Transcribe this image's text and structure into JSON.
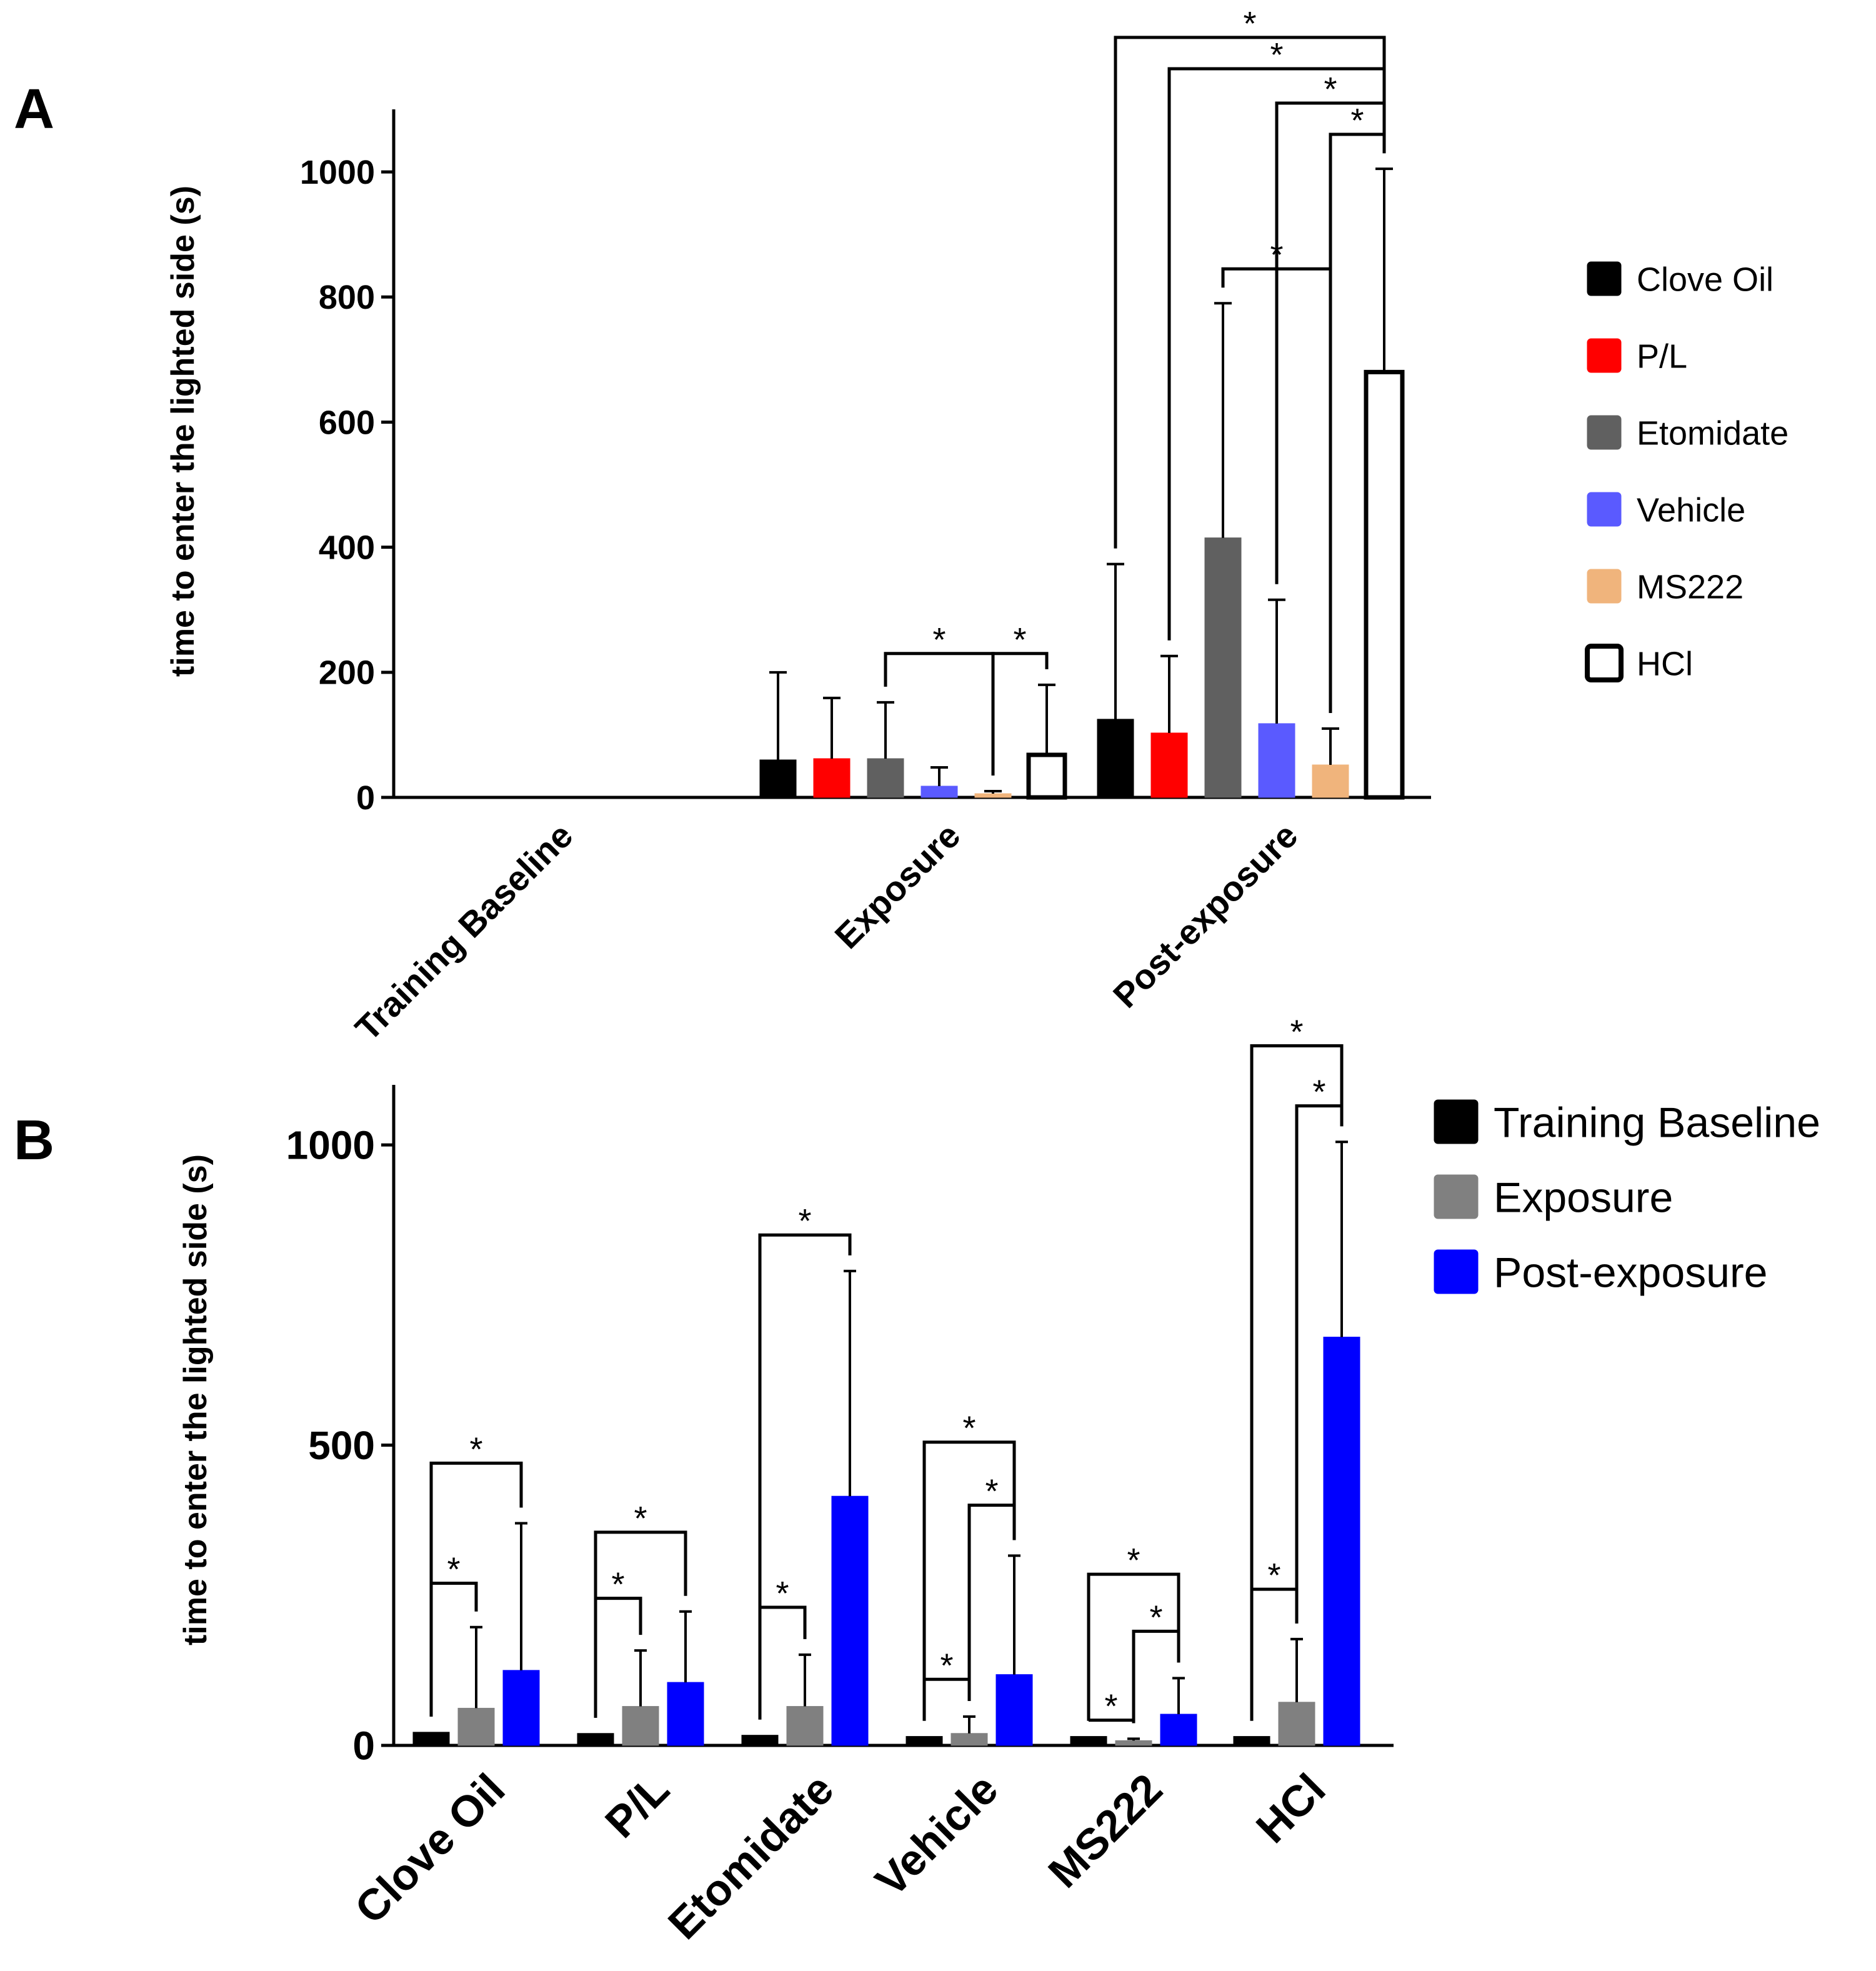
{
  "chart_data": [
    {
      "panel": "A",
      "type": "bar",
      "ylabel": "time to enter the lighted side (s)",
      "ylim": [
        0,
        1100
      ],
      "yticks": [
        0,
        200,
        400,
        600,
        800,
        1000
      ],
      "categories": [
        "Training Baseline",
        "Exposure",
        "Post-exposure"
      ],
      "series": [
        {
          "name": "Clove Oil",
          "color": "#000000",
          "outline": false,
          "values": [
            0,
            60,
            125
          ],
          "errors": [
            0,
            140,
            248
          ]
        },
        {
          "name": "P/L",
          "color": "#ff0000",
          "outline": false,
          "values": [
            0,
            62,
            103
          ],
          "errors": [
            0,
            97,
            123
          ]
        },
        {
          "name": "Etomidate",
          "color": "#606060",
          "outline": false,
          "values": [
            0,
            62,
            415
          ],
          "errors": [
            0,
            90,
            375
          ]
        },
        {
          "name": "Vehicle",
          "color": "#5a5aff",
          "outline": false,
          "values": [
            0,
            18,
            118
          ],
          "errors": [
            0,
            30,
            198
          ]
        },
        {
          "name": "MS222",
          "color": "#f0b47c",
          "outline": false,
          "values": [
            0,
            6,
            52
          ],
          "errors": [
            0,
            4,
            58
          ]
        },
        {
          "name": "HCl",
          "color": "#ffffff",
          "outline": true,
          "values": [
            0,
            68,
            680
          ],
          "errors": [
            0,
            112,
            325
          ]
        }
      ],
      "legend_position": "right",
      "significance": [
        {
          "category": 1,
          "from": 2,
          "to": 4,
          "y": 230,
          "label": "*"
        },
        {
          "category": 1,
          "from": 4,
          "to": 5,
          "y": 230,
          "label": "*"
        },
        {
          "category": 2,
          "from": 2,
          "to": 4,
          "y": 845,
          "label": "*"
        },
        {
          "category": 2,
          "from": 0,
          "to": 5,
          "y": 1215,
          "label": "*"
        },
        {
          "category": 2,
          "from": 1,
          "to": 5,
          "y": 1165,
          "label": "*"
        },
        {
          "category": 2,
          "from": 3,
          "to": 5,
          "y": 1110,
          "label": "*"
        },
        {
          "category": 2,
          "from": 4,
          "to": 5,
          "y": 1060,
          "label": "*"
        }
      ]
    },
    {
      "panel": "B",
      "type": "bar",
      "ylabel": "time to enter the lighted side (s)",
      "ylim": [
        0,
        1100
      ],
      "yticks": [
        0,
        500,
        1000
      ],
      "categories": [
        "Clove Oil",
        "P/L",
        "Etomidate",
        "Vehicle",
        "MS222",
        "HCl"
      ],
      "series": [
        {
          "name": "Training Baseline",
          "color": "#000000",
          "values": [
            22,
            20,
            17,
            15,
            15,
            15
          ],
          "errors": [
            0,
            0,
            0,
            0,
            0,
            0
          ]
        },
        {
          "name": "Exposure",
          "color": "#808080",
          "values": [
            62,
            65,
            65,
            20,
            8,
            72
          ],
          "errors": [
            135,
            93,
            86,
            28,
            3,
            105
          ]
        },
        {
          "name": "Post-exposure",
          "color": "#0000ff",
          "values": [
            125,
            105,
            415,
            118,
            52,
            680
          ],
          "errors": [
            245,
            118,
            375,
            198,
            60,
            325
          ]
        }
      ],
      "legend_position": "top-right",
      "significance": [
        {
          "category": 0,
          "from": 0,
          "to": 1,
          "y": 270,
          "label": "*"
        },
        {
          "category": 0,
          "from": 0,
          "to": 2,
          "y": 470,
          "label": "*"
        },
        {
          "category": 1,
          "from": 0,
          "to": 1,
          "y": 245,
          "label": "*"
        },
        {
          "category": 1,
          "from": 0,
          "to": 2,
          "y": 355,
          "label": "*"
        },
        {
          "category": 2,
          "from": 0,
          "to": 1,
          "y": 230,
          "label": "*"
        },
        {
          "category": 2,
          "from": 0,
          "to": 2,
          "y": 850,
          "label": "*"
        },
        {
          "category": 3,
          "from": 0,
          "to": 1,
          "y": 110,
          "label": "*"
        },
        {
          "category": 3,
          "from": 1,
          "to": 2,
          "y": 400,
          "label": "*"
        },
        {
          "category": 3,
          "from": 0,
          "to": 2,
          "y": 505,
          "label": "*"
        },
        {
          "category": 4,
          "from": 0,
          "to": 1,
          "y": 42,
          "label": "*"
        },
        {
          "category": 4,
          "from": 1,
          "to": 2,
          "y": 190,
          "label": "*"
        },
        {
          "category": 4,
          "from": 0,
          "to": 2,
          "y": 285,
          "label": "*"
        },
        {
          "category": 5,
          "from": 0,
          "to": 1,
          "y": 260,
          "label": "*"
        },
        {
          "category": 5,
          "from": 1,
          "to": 2,
          "y": 1065,
          "label": "*"
        },
        {
          "category": 5,
          "from": 0,
          "to": 2,
          "y": 1165,
          "label": "*"
        }
      ]
    }
  ],
  "panels": {
    "a_label": "A",
    "b_label": "B"
  }
}
